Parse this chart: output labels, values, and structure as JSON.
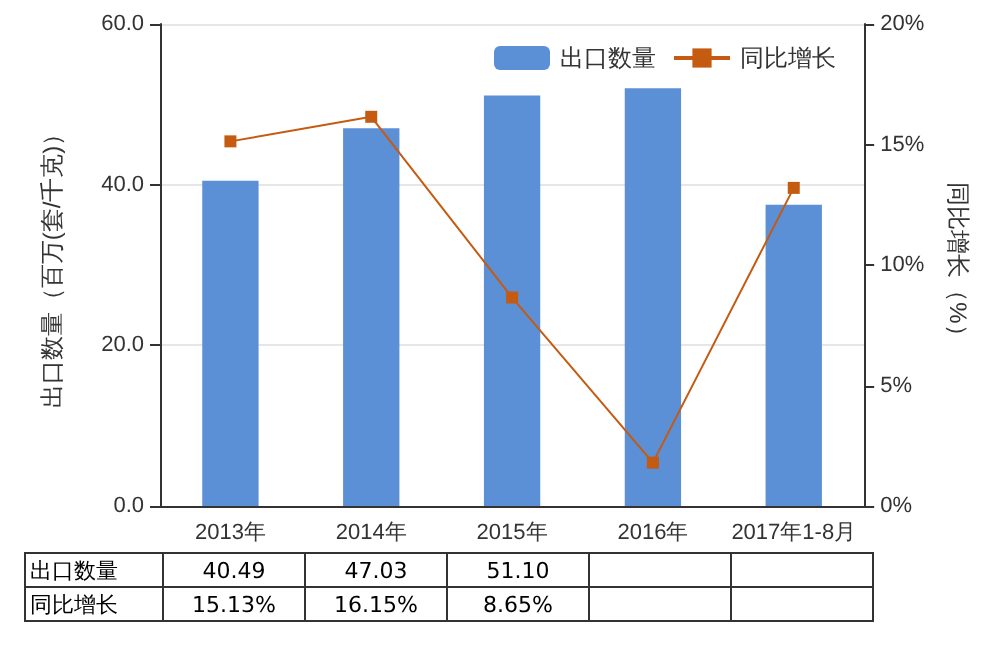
{
  "chart_data": {
    "type": "bar",
    "categories": [
      "2013年",
      "2014年",
      "2015年",
      "2016年",
      "2017年1-8月"
    ],
    "series": [
      {
        "name": "出口数量",
        "color": "#5b8fd6",
        "values": [
          40.49,
          47.03,
          51.1,
          52.0,
          37.5
        ],
        "value_labels": [
          "40.49",
          "47.03",
          "51.10",
          null,
          null
        ]
      },
      {
        "name": "同比增长",
        "type": "line",
        "axis": "y2",
        "color": "#c55a11",
        "values": [
          15.13,
          16.15,
          8.65,
          1.8,
          13.2
        ],
        "value_labels": [
          "15.13%",
          "16.15%",
          "8.65%",
          null,
          null
        ],
        "marker": "square"
      }
    ],
    "ylabel": "出口数量（百万(套/千克)）",
    "y2label": "同比增长（%）",
    "ylim": [
      0,
      60
    ],
    "yticks": [
      {
        "value": 0,
        "label": "0.0"
      },
      {
        "value": 20,
        "label": "20.0"
      },
      {
        "value": 40,
        "label": "40.0"
      },
      {
        "value": 60,
        "label": "60.0"
      }
    ],
    "y2lim": [
      0,
      20
    ],
    "y2ticks": [
      {
        "value": 0,
        "label": "0%"
      },
      {
        "value": 5,
        "label": "5%"
      },
      {
        "value": 10,
        "label": "10%"
      },
      {
        "value": 15,
        "label": "15%"
      },
      {
        "value": 20,
        "label": "20%"
      }
    ],
    "grid": "y",
    "legend": "top right"
  }
}
